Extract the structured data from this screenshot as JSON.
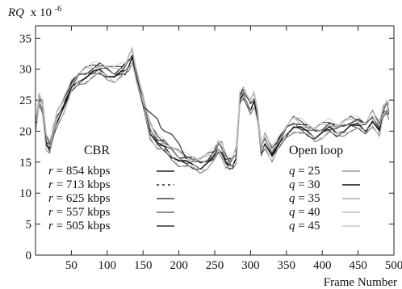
{
  "chart_data": {
    "type": "line",
    "ylabel_main": "RQ",
    "ylabel_scale": "x 10",
    "ylabel_exp": "-6",
    "xlabel": "Frame Number",
    "xlim": [
      0,
      500
    ],
    "ylim": [
      0,
      37
    ],
    "xticks": [
      50,
      100,
      150,
      200,
      250,
      300,
      350,
      400,
      450,
      500
    ],
    "yticks": [
      0,
      5,
      10,
      15,
      20,
      25,
      30,
      35
    ],
    "grid": false,
    "legend_groups": [
      {
        "title": "CBR",
        "entries": [
          {
            "var": "r",
            "value": "854 kbps",
            "color": "#222222",
            "dash": ""
          },
          {
            "var": "r",
            "value": "713 kbps",
            "color": "#222222",
            "dash": "3,4"
          },
          {
            "var": "r",
            "value": "625 kbps",
            "color": "#444444",
            "dash": ""
          },
          {
            "var": "r",
            "value": "557 kbps",
            "color": "#666666",
            "dash": ""
          },
          {
            "var": "r",
            "value": "505 kbps",
            "color": "#333333",
            "dash": ""
          }
        ]
      },
      {
        "title": "Open loop",
        "entries": [
          {
            "var": "q",
            "value": "25",
            "color": "#999999",
            "dash": ""
          },
          {
            "var": "q",
            "value": "30",
            "color": "#111111",
            "dash": ""
          },
          {
            "var": "q",
            "value": "35",
            "color": "#aaaaaa",
            "dash": ""
          },
          {
            "var": "q",
            "value": "40",
            "color": "#bbbbbb",
            "dash": ""
          },
          {
            "var": "q",
            "value": "45",
            "color": "#cccccc",
            "dash": ""
          }
        ]
      }
    ],
    "x": [
      1,
      5,
      10,
      15,
      20,
      25,
      30,
      40,
      50,
      60,
      70,
      80,
      90,
      100,
      110,
      120,
      125,
      130,
      135,
      140,
      150,
      160,
      170,
      180,
      190,
      200,
      210,
      220,
      230,
      240,
      250,
      255,
      260,
      265,
      270,
      275,
      280,
      285,
      290,
      300,
      305,
      310,
      315,
      320,
      330,
      340,
      350,
      360,
      370,
      380,
      390,
      400,
      410,
      420,
      430,
      440,
      450,
      460,
      470,
      480,
      485,
      490,
      493
    ],
    "series_base": [
      21,
      25,
      24,
      18,
      17,
      20,
      22,
      24,
      27,
      28.5,
      29,
      29.5,
      30,
      29.5,
      29,
      29.5,
      30,
      31,
      32,
      29,
      25,
      20,
      18,
      17.5,
      16.5,
      15.5,
      15,
      14.8,
      14.5,
      15,
      16,
      17.5,
      17,
      15,
      14.5,
      15,
      16,
      25,
      26,
      24,
      25,
      22,
      17,
      18.5,
      16,
      18,
      20,
      21,
      20.5,
      20,
      19.5,
      20,
      20.5,
      20,
      20.5,
      21,
      21,
      20.5,
      22,
      20,
      23,
      24,
      23
    ],
    "series_offsets": [
      {
        "name": "r = 854 kbps",
        "offset": 0.6,
        "color": "#222222",
        "width": 1.3
      },
      {
        "name": "r = 713 kbps",
        "offset": -0.5,
        "color": "#3a3a3a",
        "width": 1.1
      },
      {
        "name": "r = 625 kbps",
        "offset": 0.2,
        "color": "#444444",
        "width": 1.1
      },
      {
        "name": "r = 557 kbps",
        "offset": -0.9,
        "color": "#666666",
        "width": 1.0
      },
      {
        "name": "r = 505 kbps",
        "offset": 1.0,
        "color": "#333333",
        "width": 1.0
      },
      {
        "name": "q = 25",
        "offset": 0.4,
        "color": "#999999",
        "width": 1.0
      },
      {
        "name": "q = 30",
        "offset": -0.2,
        "color": "#111111",
        "width": 1.4
      },
      {
        "name": "q = 35",
        "offset": 0.8,
        "color": "#aaaaaa",
        "width": 1.0
      },
      {
        "name": "q = 40",
        "offset": -0.7,
        "color": "#bbbbbb",
        "width": 1.0
      },
      {
        "name": "q = 45",
        "offset": 1.2,
        "color": "#cccccc",
        "width": 1.0
      }
    ],
    "detour_x": [
      150,
      160,
      170,
      175,
      180,
      190,
      200,
      210
    ],
    "detour_y": [
      24,
      23,
      22,
      20.5,
      20,
      19.5,
      18,
      15.5
    ]
  }
}
